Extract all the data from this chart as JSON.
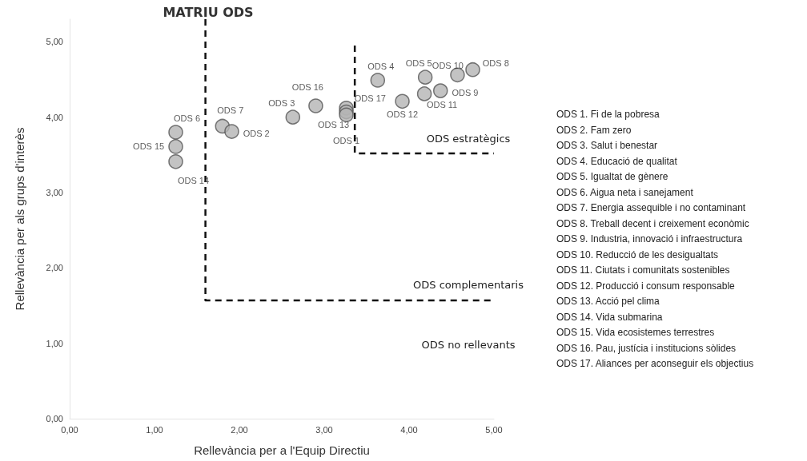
{
  "chart_data": {
    "type": "scatter",
    "title": "MATRIU ODS",
    "xlabel": "Rellevància per a l'Equip Directiu",
    "ylabel": "Rellevància per als grups d'interès",
    "xlim": [
      0,
      5
    ],
    "ylim": [
      0,
      5.3
    ],
    "xticks": [
      {
        "value": 0,
        "label": "0,00"
      },
      {
        "value": 1,
        "label": "1,00"
      },
      {
        "value": 2,
        "label": "2,00"
      },
      {
        "value": 3,
        "label": "3,00"
      },
      {
        "value": 4,
        "label": "4,00"
      },
      {
        "value": 5,
        "label": "5,00"
      }
    ],
    "yticks": [
      {
        "value": 0,
        "label": "0,00"
      },
      {
        "value": 1,
        "label": "1,00"
      },
      {
        "value": 2,
        "label": "2,00"
      },
      {
        "value": 3,
        "label": "3,00"
      },
      {
        "value": 4,
        "label": "4,00"
      },
      {
        "value": 5,
        "label": "5,00"
      }
    ],
    "grid": false,
    "legend": false,
    "marker": "circle",
    "series": [
      {
        "name": "ODS 1",
        "color": "#b4b4b4",
        "x": [
          3.26
        ],
        "values": [
          4.03
        ]
      },
      {
        "name": "ODS 2",
        "color": "#b4b4b4",
        "x": [
          1.91
        ],
        "values": [
          3.81
        ]
      },
      {
        "name": "ODS 3",
        "color": "#b4b4b4",
        "x": [
          2.63
        ],
        "values": [
          4.0
        ]
      },
      {
        "name": "ODS 4",
        "color": "#b4b4b4",
        "x": [
          3.63
        ],
        "values": [
          4.49
        ]
      },
      {
        "name": "ODS 5",
        "color": "#b4b4b4",
        "x": [
          4.19
        ],
        "values": [
          4.53
        ]
      },
      {
        "name": "ODS 6",
        "color": "#b4b4b4",
        "x": [
          1.25
        ],
        "values": [
          3.8
        ]
      },
      {
        "name": "ODS 7",
        "color": "#b4b4b4",
        "x": [
          1.8
        ],
        "values": [
          3.88
        ]
      },
      {
        "name": "ODS 8",
        "color": "#b4b4b4",
        "x": [
          4.75
        ],
        "values": [
          4.63
        ]
      },
      {
        "name": "ODS 9",
        "color": "#b4b4b4",
        "x": [
          4.37
        ],
        "values": [
          4.35
        ]
      },
      {
        "name": "ODS 10",
        "color": "#b4b4b4",
        "x": [
          4.57
        ],
        "values": [
          4.56
        ]
      },
      {
        "name": "ODS 11",
        "color": "#b4b4b4",
        "x": [
          4.18
        ],
        "values": [
          4.31
        ]
      },
      {
        "name": "ODS 12",
        "color": "#b4b4b4",
        "x": [
          3.92
        ],
        "values": [
          4.21
        ]
      },
      {
        "name": "ODS 13",
        "color": "#b4b4b4",
        "x": [
          3.26
        ],
        "values": [
          4.07
        ]
      },
      {
        "name": "ODS 14",
        "color": "#b4b4b4",
        "x": [
          1.25
        ],
        "values": [
          3.41
        ]
      },
      {
        "name": "ODS 15",
        "color": "#b4b4b4",
        "x": [
          1.25
        ],
        "values": [
          3.61
        ]
      },
      {
        "name": "ODS 16",
        "color": "#b4b4b4",
        "x": [
          2.9
        ],
        "values": [
          4.15
        ]
      },
      {
        "name": "ODS 17",
        "color": "#b4b4b4",
        "x": [
          3.26
        ],
        "values": [
          4.12
        ]
      },
      {
        "type": "line",
        "color": "#111111",
        "line_style": "dashed",
        "marker": "none",
        "x": [
          1.6,
          1.6,
          5
        ],
        "values": [
          5.3,
          1.57,
          1.57
        ]
      },
      {
        "type": "line",
        "color": "#111111",
        "line_style": "dashed",
        "marker": "none",
        "x": [
          3.36,
          3.36,
          5
        ],
        "values": [
          4.95,
          3.52,
          3.52
        ]
      }
    ],
    "annotations": [
      "ODS estratègics",
      "ODS complementaris",
      "ODS no rellevants",
      "ODS 1. Fi de la pobresa",
      "ODS 2. Fam zero",
      "ODS 3. Salut i benestar",
      "ODS 4. Educació de qualitat",
      "ODS 5. Igualtat de gènere",
      "ODS 6. Aigua neta i sanejament",
      "ODS 7. Energia assequible i no contaminant",
      "ODS 8. Treball decent i creixement econòmic",
      "ODS 9. Industria, innovació i infraestructura",
      "ODS 10. Reducció de les desigualtats",
      "ODS 11. Ciutats i comunitats sostenibles",
      "ODS 12. Producció i consum responsable",
      "ODS 13. Acció pel clima",
      "ODS 14. Vida submarina",
      "ODS 15. Vida ecosistemes terrestres",
      "ODS 16. Pau, justícia i institucions sòlides",
      "ODS 17. Aliances per aconseguir els objectius"
    ]
  }
}
